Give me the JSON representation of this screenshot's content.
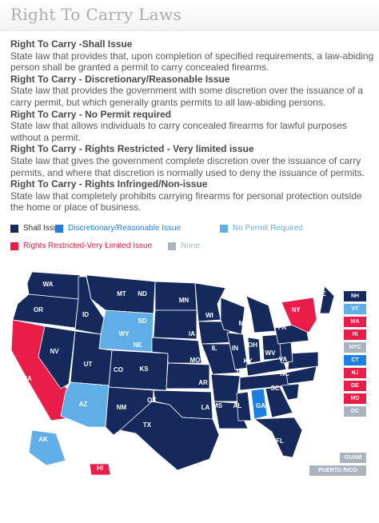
{
  "title": "Right To Carry Laws",
  "definitions": [
    {
      "term": "Right To Carry -Shall Issue",
      "text": "State law that provides that, upon completion of specified requirements, a law-abiding person shall be granted a permit to carry concealed firearms."
    },
    {
      "term": "Right To Carry - Discretionary/Reasonable Issue",
      "text": "State law that provides the government with some discretion over the issuance of a carry permit, but which generally grants permits to all law-abiding persons."
    },
    {
      "term": "Right To Carry - No Permit required",
      "text": "State law that allows individuals to carry concealed firearms for lawful purposes without a permit."
    },
    {
      "term": "Right To Carry - Rights Restricted - Very limited issue",
      "text": "State law that gives the government complete discretion over the issuance of carry permits, and where that discretion is normally used to deny the issuance of permits."
    },
    {
      "term": "Right To Carry - Rights Infringed/Non-issue",
      "text": "State law that completely prohibits carrying firearms for personal protection outside the home or place of business."
    }
  ],
  "legend": [
    {
      "label": "Shall Issue",
      "color": "#15295c"
    },
    {
      "label": "Discretionary/Reasonable Issue",
      "color": "#1d7fe0"
    },
    {
      "label": "No Permit Required",
      "color": "#5faee8"
    },
    {
      "label": "Rights Restricted-Very Limited Issue",
      "color": "#ea1c48"
    },
    {
      "label": "None",
      "color": "#a9b4be"
    }
  ],
  "states": [
    {
      "abbr": "WA",
      "category": "Shall Issue"
    },
    {
      "abbr": "OR",
      "category": "Shall Issue"
    },
    {
      "abbr": "CA",
      "category": "Rights Restricted-Very Limited Issue"
    },
    {
      "abbr": "NV",
      "category": "Shall Issue"
    },
    {
      "abbr": "ID",
      "category": "Shall Issue"
    },
    {
      "abbr": "MT",
      "category": "Shall Issue"
    },
    {
      "abbr": "WY",
      "category": "No Permit Required"
    },
    {
      "abbr": "UT",
      "category": "Shall Issue"
    },
    {
      "abbr": "AZ",
      "category": "No Permit Required"
    },
    {
      "abbr": "CO",
      "category": "Shall Issue"
    },
    {
      "abbr": "NM",
      "category": "Shall Issue"
    },
    {
      "abbr": "ND",
      "category": "Shall Issue"
    },
    {
      "abbr": "SD",
      "category": "Shall Issue"
    },
    {
      "abbr": "NE",
      "category": "Shall Issue"
    },
    {
      "abbr": "KS",
      "category": "Shall Issue"
    },
    {
      "abbr": "OK",
      "category": "Shall Issue"
    },
    {
      "abbr": "TX",
      "category": "Shall Issue"
    },
    {
      "abbr": "MN",
      "category": "Shall Issue"
    },
    {
      "abbr": "IA",
      "category": "Shall Issue"
    },
    {
      "abbr": "MO",
      "category": "Shall Issue"
    },
    {
      "abbr": "AR",
      "category": "Shall Issue"
    },
    {
      "abbr": "LA",
      "category": "Shall Issue"
    },
    {
      "abbr": "WI",
      "category": "Shall Issue"
    },
    {
      "abbr": "IL",
      "category": "Shall Issue"
    },
    {
      "abbr": "MI",
      "category": "Shall Issue"
    },
    {
      "abbr": "IN",
      "category": "Shall Issue"
    },
    {
      "abbr": "OH",
      "category": "Shall Issue"
    },
    {
      "abbr": "KY",
      "category": "Shall Issue"
    },
    {
      "abbr": "TN",
      "category": "Shall Issue"
    },
    {
      "abbr": "MS",
      "category": "Shall Issue"
    },
    {
      "abbr": "AL",
      "category": "Discretionary/Reasonable Issue"
    },
    {
      "abbr": "GA",
      "category": "Shall Issue"
    },
    {
      "abbr": "FL",
      "category": "Shall Issue"
    },
    {
      "abbr": "SC",
      "category": "Shall Issue"
    },
    {
      "abbr": "NC",
      "category": "Shall Issue"
    },
    {
      "abbr": "VA",
      "category": "Shall Issue"
    },
    {
      "abbr": "WV",
      "category": "Shall Issue"
    },
    {
      "abbr": "PA",
      "category": "Shall Issue"
    },
    {
      "abbr": "NY",
      "category": "Rights Restricted-Very Limited Issue"
    },
    {
      "abbr": "ME",
      "category": "Shall Issue"
    },
    {
      "abbr": "AK",
      "category": "No Permit Required"
    },
    {
      "abbr": "HI",
      "category": "Rights Restricted-Very Limited Issue"
    }
  ],
  "badges": [
    {
      "abbr": "NH",
      "category": "Shall Issue"
    },
    {
      "abbr": "VT",
      "category": "No Permit Required"
    },
    {
      "abbr": "MA",
      "category": "Rights Restricted-Very Limited Issue"
    },
    {
      "abbr": "RI",
      "category": "Rights Restricted-Very Limited Issue"
    },
    {
      "abbr": "NYC",
      "category": "None"
    },
    {
      "abbr": "CT",
      "category": "Discretionary/Reasonable Issue"
    },
    {
      "abbr": "NJ",
      "category": "Rights Restricted-Very Limited Issue"
    },
    {
      "abbr": "DE",
      "category": "Rights Restricted-Very Limited Issue"
    },
    {
      "abbr": "MD",
      "category": "Rights Restricted-Very Limited Issue"
    },
    {
      "abbr": "DC",
      "category": "None"
    }
  ],
  "territories": [
    {
      "label": "GUAM",
      "category": "None"
    },
    {
      "label": "PUERTO RICO",
      "category": "None"
    }
  ]
}
